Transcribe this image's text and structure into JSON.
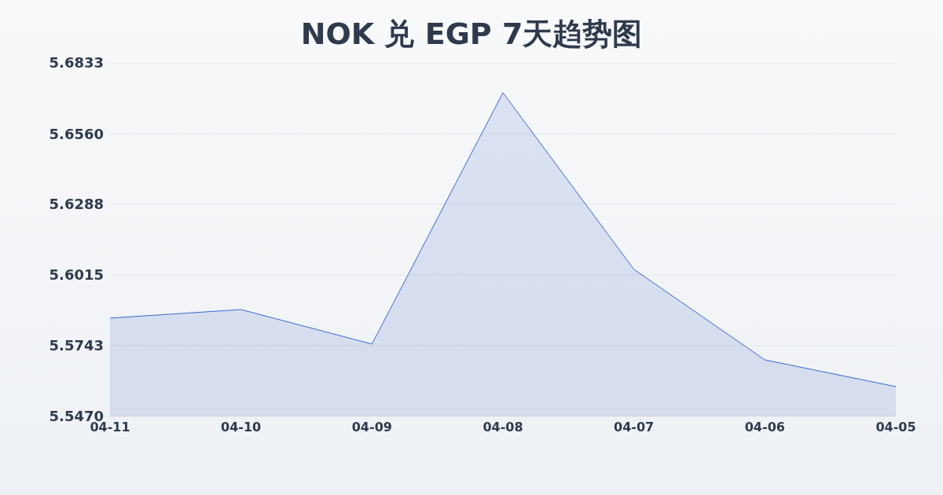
{
  "chart_data": {
    "type": "area",
    "title": "NOK 兑 EGP 7天趋势图",
    "categories": [
      "04-11",
      "04-10",
      "04-09",
      "04-08",
      "04-07",
      "04-06",
      "04-05"
    ],
    "series": [
      {
        "color": "#3a68cc",
        "values": [
          5.5849,
          5.5882,
          5.5749,
          5.6718,
          5.6037,
          5.5688,
          5.5585
        ]
      }
    ],
    "ylim": [
      5.547,
      5.6833
    ],
    "yticks": [
      {
        "value": 5.547,
        "label": "5.5470"
      },
      5.5743,
      5.6015,
      5.6288,
      {
        "value": 5.656,
        "label": "5.6560"
      },
      5.6833
    ],
    "grid": "y"
  }
}
